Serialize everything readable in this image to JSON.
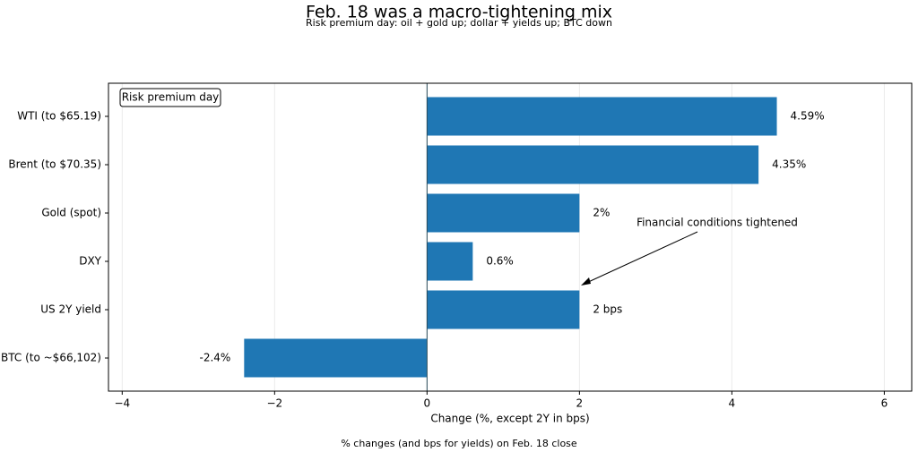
{
  "chart_data": {
    "type": "barh",
    "title": "Feb. 18 was a macro-tightening mix",
    "subtitle": "Risk premium day: oil + gold up; dollar + yields up; BTC down",
    "x_label": "Change (%, except 2Y in bps)",
    "footnote": "% changes (and bps for yields) on Feb. 18 close",
    "box_annotation": "Risk premium day",
    "annotation": "Financial conditions tightened",
    "categories": [
      "WTI (to $65.19)",
      "Brent (to $70.35)",
      "Gold (spot)",
      "DXY",
      "US 2Y yield",
      "BTC (to ~$66,102)"
    ],
    "values": [
      4.59,
      4.35,
      2,
      0.6,
      2,
      -2.4
    ],
    "value_labels": [
      "4.59%",
      "4.35%",
      "2%",
      "0.6%",
      "2 bps",
      "-2.4%"
    ],
    "color": "#1f77b4",
    "xlim": [
      -4.18,
      6.36
    ],
    "xticks": [
      {
        "value": -4,
        "label": "−4"
      },
      {
        "value": -2,
        "label": "−2"
      },
      0,
      2,
      4,
      6
    ],
    "grid": true
  }
}
